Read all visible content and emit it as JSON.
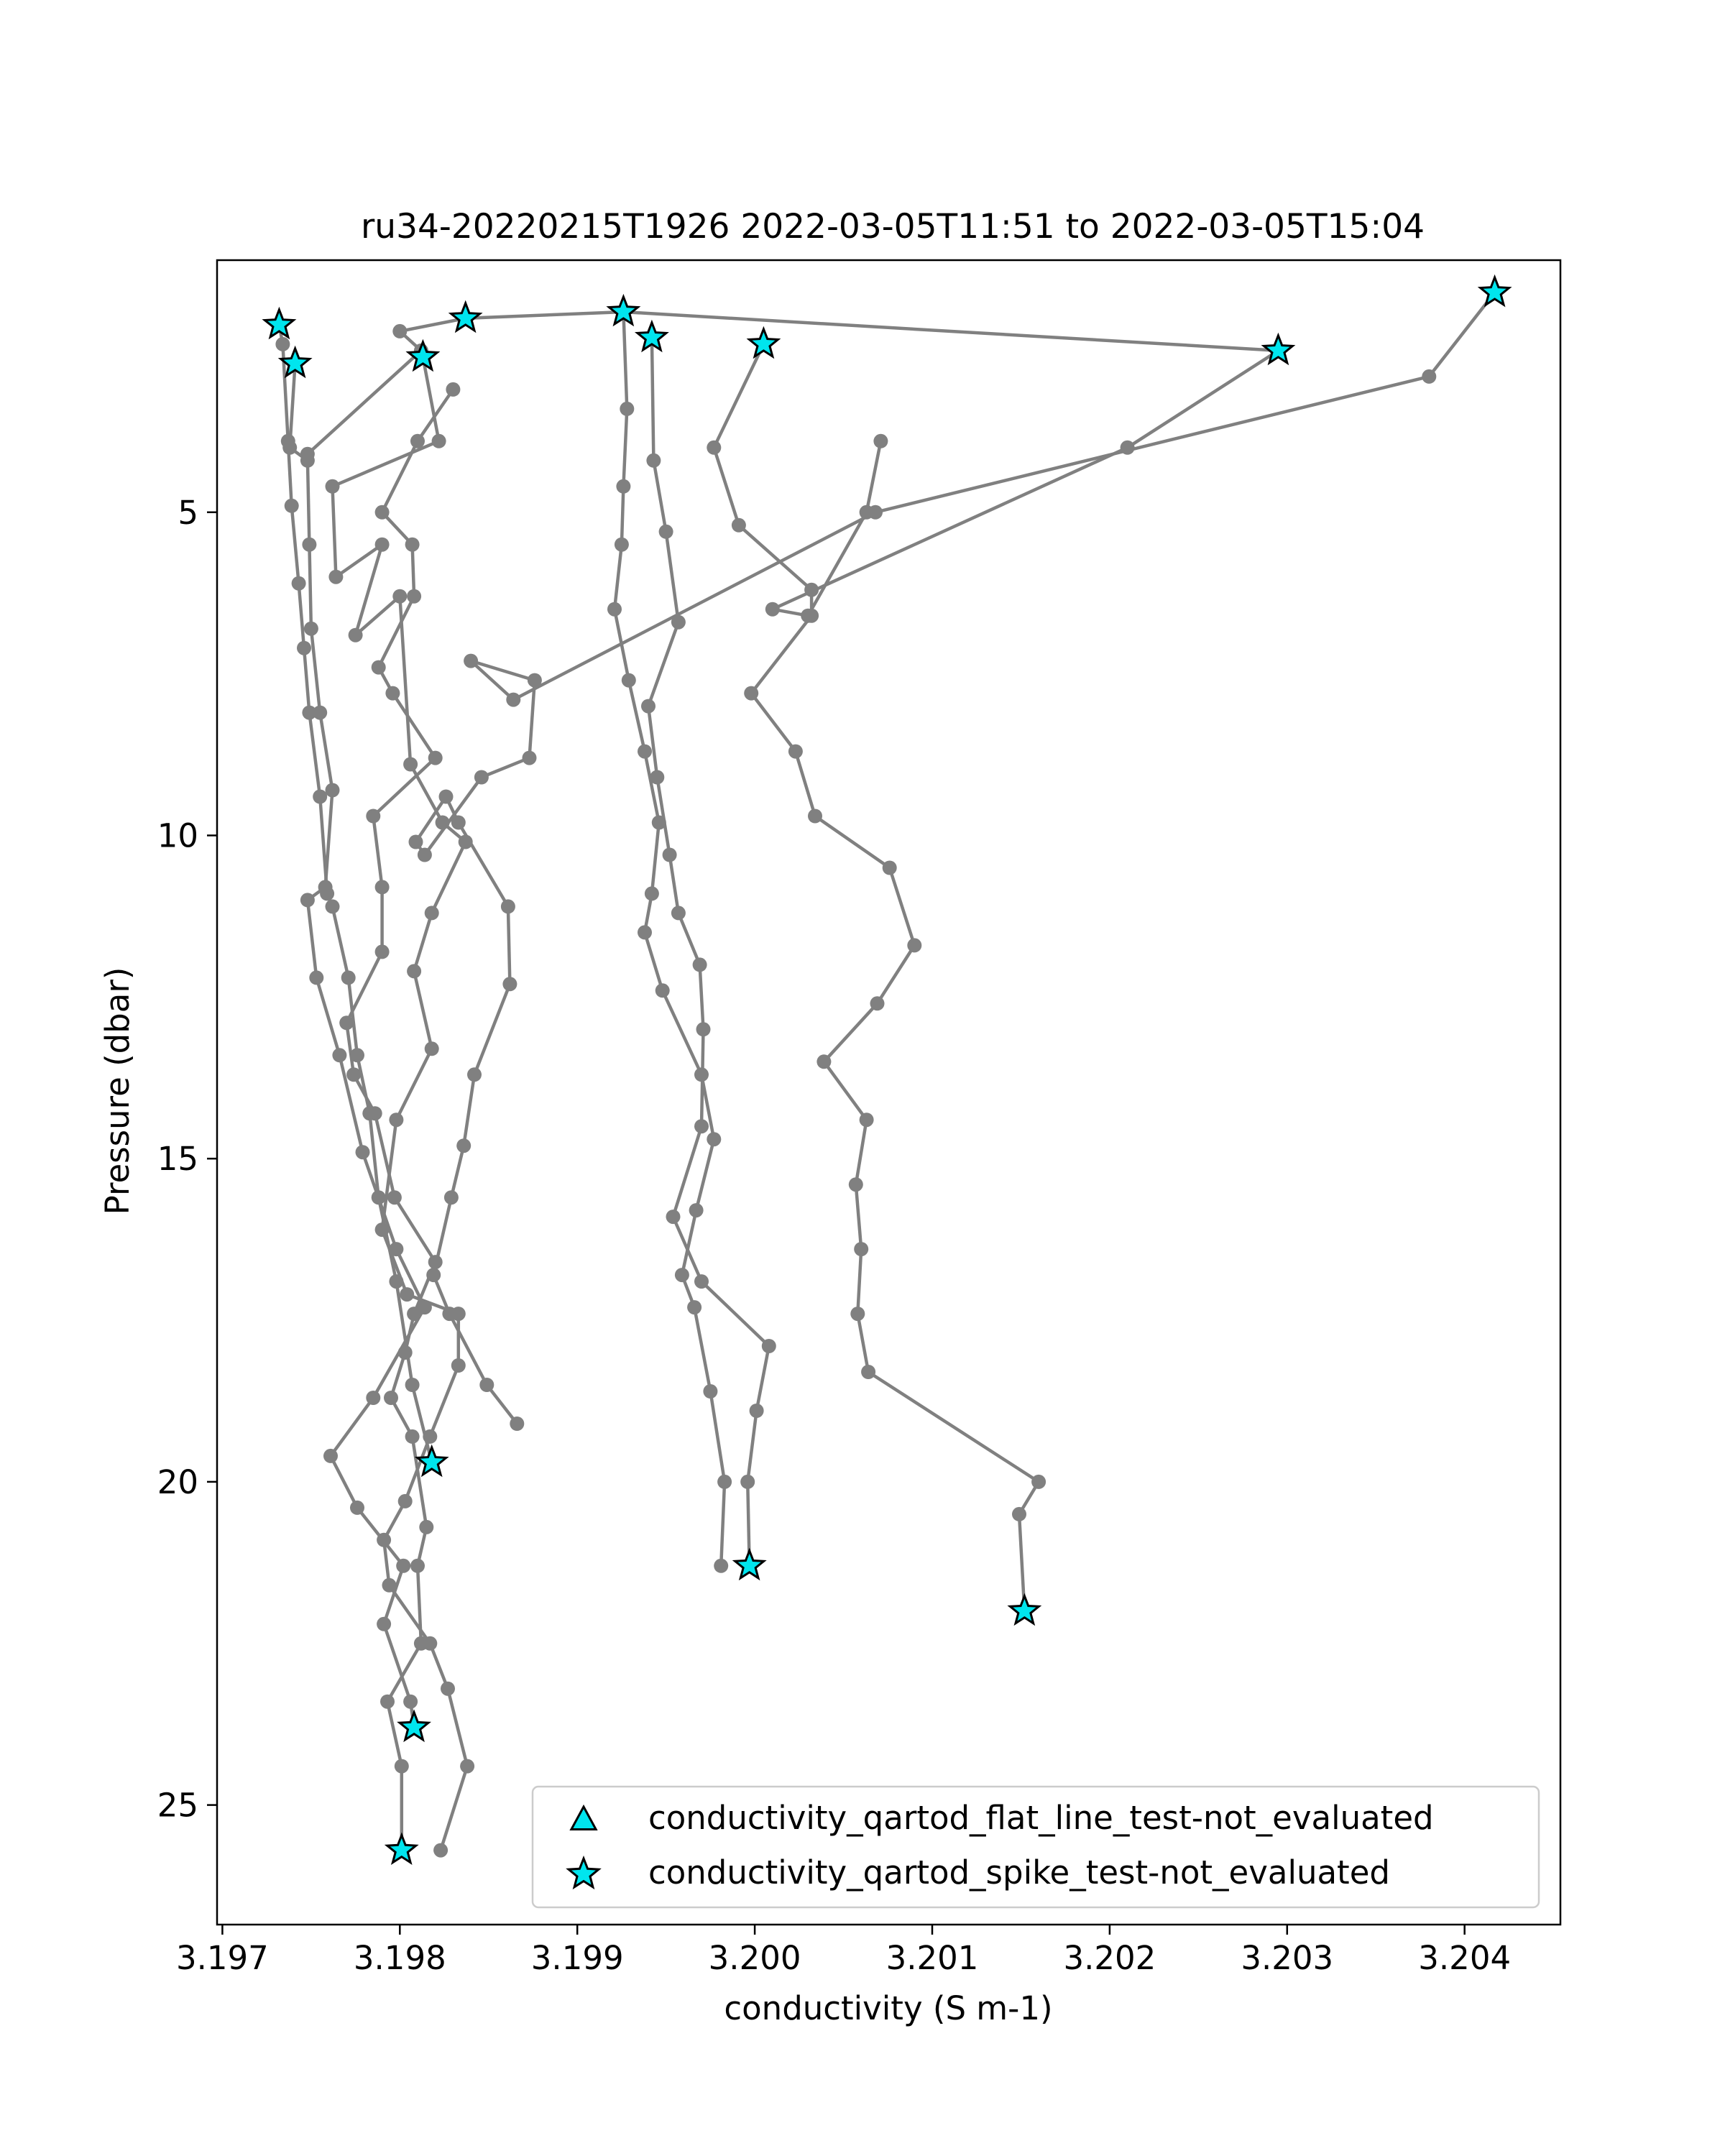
{
  "chart_data": {
    "type": "scatter",
    "title": "ru34-20220215T1926 2022-03-05T11:51 to 2022-03-05T15:04",
    "xlabel": "conductivity (S m-1)",
    "ylabel": "Pressure (dbar)",
    "xlim": [
      3.19697,
      3.20454
    ],
    "ylim": [
      26.85,
      1.1
    ],
    "y_inverted": true,
    "xticks": [
      3.197,
      3.198,
      3.199,
      3.2,
      3.201,
      3.202,
      3.203,
      3.204
    ],
    "xtick_labels": [
      "3.197",
      "3.198",
      "3.199",
      "3.200",
      "3.201",
      "3.202",
      "3.203",
      "3.204"
    ],
    "yticks": [
      5,
      10,
      15,
      20,
      25
    ],
    "ytick_labels": [
      "5",
      "10",
      "15",
      "20",
      "25"
    ],
    "grid": false,
    "legend_position": "lower-right",
    "colors": {
      "line": "#808080",
      "marker": "#808080",
      "flag_fill": "#00e5ee",
      "flag_edge": "#000000"
    },
    "series": [
      {
        "type": "line",
        "points": [
          [
            3.19732,
            2.1
          ],
          [
            3.19734,
            2.4
          ],
          [
            3.19737,
            3.9
          ],
          [
            3.19739,
            4.9
          ],
          [
            3.19743,
            6.1
          ],
          [
            3.19746,
            7.1
          ],
          [
            3.19749,
            8.1
          ],
          [
            3.19755,
            9.4
          ],
          [
            3.19759,
            10.9
          ],
          [
            3.19762,
            11.1
          ],
          [
            3.19771,
            12.2
          ],
          [
            3.19776,
            13.4
          ],
          [
            3.19783,
            14.3
          ],
          [
            3.19788,
            15.6
          ],
          [
            3.19798,
            16.9
          ],
          [
            3.19807,
            18.5
          ],
          [
            3.19818,
            19.7
          ]
        ]
      },
      {
        "type": "line",
        "points": [
          [
            3.19741,
            2.7
          ],
          [
            3.19738,
            4.0
          ],
          [
            3.19748,
            4.2
          ],
          [
            3.19749,
            5.5
          ],
          [
            3.1975,
            6.8
          ],
          [
            3.19755,
            8.1
          ],
          [
            3.19762,
            9.3
          ],
          [
            3.19758,
            10.8
          ],
          [
            3.19748,
            11.0
          ],
          [
            3.19753,
            12.2
          ],
          [
            3.19766,
            13.4
          ],
          [
            3.19779,
            14.9
          ],
          [
            3.19798,
            16.4
          ],
          [
            3.19814,
            17.3
          ],
          [
            3.19785,
            18.7
          ],
          [
            3.19761,
            19.6
          ],
          [
            3.19776,
            20.4
          ],
          [
            3.19802,
            21.3
          ],
          [
            3.19791,
            22.2
          ],
          [
            3.19806,
            23.4
          ],
          [
            3.19808,
            23.8
          ]
        ]
      },
      {
        "type": "line",
        "points": [
          [
            3.19748,
            4.1
          ],
          [
            3.19812,
            2.5
          ],
          [
            3.198,
            2.2
          ],
          [
            3.19837,
            2.0
          ],
          [
            3.19926,
            1.9
          ],
          [
            3.20295,
            2.5
          ]
        ]
      },
      {
        "type": "line",
        "points": [
          [
            3.19813,
            2.6
          ],
          [
            3.19822,
            3.9
          ],
          [
            3.19762,
            4.6
          ],
          [
            3.19764,
            6.0
          ],
          [
            3.1979,
            5.5
          ],
          [
            3.19775,
            6.9
          ],
          [
            3.198,
            6.3
          ],
          [
            3.19806,
            8.9
          ],
          [
            3.19824,
            9.8
          ],
          [
            3.19837,
            10.1
          ],
          [
            3.19818,
            11.2
          ],
          [
            3.19808,
            12.1
          ],
          [
            3.19818,
            13.3
          ],
          [
            3.19798,
            14.4
          ],
          [
            3.1979,
            16.1
          ],
          [
            3.19804,
            17.1
          ],
          [
            3.19833,
            17.4
          ],
          [
            3.19833,
            18.2
          ],
          [
            3.19817,
            19.3
          ],
          [
            3.19803,
            20.3
          ],
          [
            3.19791,
            20.9
          ],
          [
            3.19794,
            21.6
          ],
          [
            3.19817,
            22.5
          ],
          [
            3.19827,
            23.2
          ],
          [
            3.19838,
            24.4
          ],
          [
            3.19823,
            25.7
          ]
        ]
      },
      {
        "type": "line",
        "points": [
          [
            3.19801,
            25.7
          ],
          [
            3.19801,
            24.4
          ],
          [
            3.19793,
            23.4
          ],
          [
            3.19812,
            22.5
          ],
          [
            3.1981,
            21.3
          ],
          [
            3.19815,
            20.7
          ],
          [
            3.19807,
            19.3
          ],
          [
            3.19795,
            18.7
          ],
          [
            3.19803,
            18.0
          ],
          [
            3.19808,
            17.4
          ],
          [
            3.1982,
            16.6
          ],
          [
            3.19797,
            15.6
          ],
          [
            3.19786,
            14.3
          ],
          [
            3.19774,
            13.7
          ],
          [
            3.1977,
            12.9
          ],
          [
            3.1979,
            11.8
          ],
          [
            3.1979,
            10.8
          ],
          [
            3.19785,
            9.7
          ],
          [
            3.1982,
            8.8
          ],
          [
            3.19796,
            7.8
          ],
          [
            3.19788,
            7.4
          ],
          [
            3.19808,
            6.3
          ],
          [
            3.19807,
            5.5
          ],
          [
            3.1979,
            5.0
          ],
          [
            3.1981,
            3.9
          ],
          [
            3.1983,
            3.1
          ]
        ]
      },
      {
        "type": "line",
        "points": [
          [
            3.19866,
            19.1
          ],
          [
            3.19849,
            18.5
          ],
          [
            3.19828,
            17.4
          ],
          [
            3.19819,
            16.8
          ],
          [
            3.19829,
            15.6
          ],
          [
            3.19836,
            14.8
          ],
          [
            3.19842,
            13.7
          ],
          [
            3.19862,
            12.3
          ],
          [
            3.19861,
            11.1
          ],
          [
            3.19833,
            9.8
          ],
          [
            3.19826,
            9.4
          ],
          [
            3.19809,
            10.1
          ],
          [
            3.19814,
            10.3
          ],
          [
            3.19846,
            9.1
          ],
          [
            3.19873,
            8.8
          ],
          [
            3.19876,
            7.6
          ],
          [
            3.1984,
            7.3
          ],
          [
            3.19864,
            7.9
          ],
          [
            3.20068,
            5.0
          ],
          [
            3.2038,
            2.9
          ],
          [
            3.20417,
            1.6
          ]
        ]
      },
      {
        "type": "line",
        "points": [
          [
            3.19926,
            1.9
          ],
          [
            3.19928,
            3.4
          ],
          [
            3.19926,
            4.6
          ],
          [
            3.19925,
            5.5
          ],
          [
            3.19921,
            6.5
          ],
          [
            3.19929,
            7.6
          ],
          [
            3.19938,
            8.7
          ],
          [
            3.19946,
            9.8
          ],
          [
            3.19942,
            10.9
          ],
          [
            3.19938,
            11.5
          ],
          [
            3.19948,
            12.4
          ],
          [
            3.1997,
            13.7
          ],
          [
            3.19977,
            14.7
          ],
          [
            3.19967,
            15.8
          ],
          [
            3.19959,
            16.8
          ],
          [
            3.19966,
            17.3
          ],
          [
            3.19975,
            18.6
          ],
          [
            3.19983,
            20.0
          ],
          [
            3.19981,
            21.3
          ]
        ]
      },
      {
        "type": "line",
        "points": [
          [
            3.19942,
            2.3
          ],
          [
            3.19943,
            4.2
          ],
          [
            3.1995,
            5.3
          ],
          [
            3.19957,
            6.7
          ],
          [
            3.1994,
            8.0
          ],
          [
            3.19945,
            9.1
          ],
          [
            3.19952,
            10.3
          ],
          [
            3.19957,
            11.2
          ],
          [
            3.19969,
            12.0
          ],
          [
            3.19971,
            13.0
          ],
          [
            3.1997,
            14.5
          ],
          [
            3.19954,
            15.9
          ],
          [
            3.1997,
            16.9
          ],
          [
            3.20008,
            17.9
          ],
          [
            3.20001,
            18.9
          ],
          [
            3.19996,
            20.0
          ],
          [
            3.19997,
            21.3
          ]
        ]
      },
      {
        "type": "line",
        "points": [
          [
            3.20005,
            2.4
          ],
          [
            3.19977,
            4.0
          ],
          [
            3.19991,
            5.2
          ],
          [
            3.20032,
            6.2
          ],
          [
            3.20032,
            6.6
          ],
          [
            3.19998,
            7.8
          ],
          [
            3.20023,
            8.7
          ],
          [
            3.20034,
            9.7
          ],
          [
            3.20076,
            10.5
          ],
          [
            3.2009,
            11.7
          ],
          [
            3.20069,
            12.6
          ],
          [
            3.20039,
            13.5
          ],
          [
            3.20063,
            14.4
          ],
          [
            3.20057,
            15.4
          ],
          [
            3.2006,
            16.4
          ],
          [
            3.20058,
            17.4
          ],
          [
            3.20064,
            18.3
          ],
          [
            3.2016,
            20.0
          ],
          [
            3.20149,
            20.5
          ],
          [
            3.20152,
            22.0
          ]
        ]
      },
      {
        "type": "line",
        "points": [
          [
            3.20071,
            3.9
          ],
          [
            3.20063,
            5.0
          ],
          [
            3.2003,
            6.6
          ],
          [
            3.2001,
            6.5
          ],
          [
            3.2021,
            4.0
          ],
          [
            3.20295,
            2.5
          ]
        ]
      }
    ],
    "flag_points": [
      {
        "x": 3.19732,
        "y": 2.1,
        "flag": "spike"
      },
      {
        "x": 3.19741,
        "y": 2.7,
        "flag": "spike"
      },
      {
        "x": 3.19813,
        "y": 2.6,
        "flag": "spike"
      },
      {
        "x": 3.19837,
        "y": 2.0,
        "flag": "spike"
      },
      {
        "x": 3.19926,
        "y": 1.9,
        "flag": "spike"
      },
      {
        "x": 3.19942,
        "y": 2.3,
        "flag": "spike"
      },
      {
        "x": 3.20005,
        "y": 2.4,
        "flag": "spike"
      },
      {
        "x": 3.20295,
        "y": 2.5,
        "flag": "spike"
      },
      {
        "x": 3.20417,
        "y": 1.6,
        "flag": "spike"
      },
      {
        "x": 3.19818,
        "y": 19.7,
        "flag": "spike"
      },
      {
        "x": 3.19997,
        "y": 21.3,
        "flag": "spike"
      },
      {
        "x": 3.20152,
        "y": 22.0,
        "flag": "spike"
      },
      {
        "x": 3.19808,
        "y": 23.8,
        "flag": "spike"
      },
      {
        "x": 3.19801,
        "y": 25.7,
        "flag": "spike"
      }
    ],
    "legend": [
      {
        "label": "conductivity_qartod_flat_line_test-not_evaluated",
        "marker": "triangle"
      },
      {
        "label": "conductivity_qartod_spike_test-not_evaluated",
        "marker": "star"
      }
    ]
  }
}
